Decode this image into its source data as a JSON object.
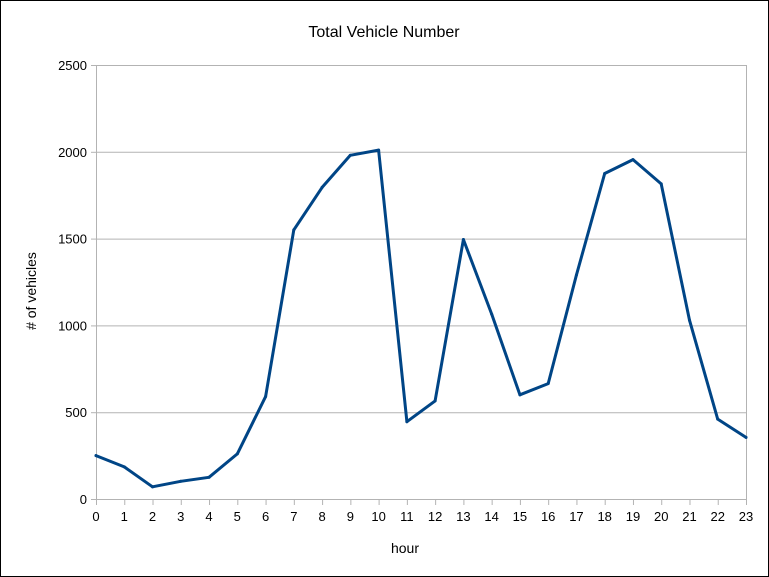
{
  "chart_data": {
    "type": "line",
    "title": "Total Vehicle Number",
    "xlabel": "hour",
    "ylabel": "# of vehicles",
    "categories": [
      "0",
      "1",
      "2",
      "3",
      "4",
      "5",
      "6",
      "7",
      "8",
      "9",
      "10",
      "11",
      "12",
      "13",
      "14",
      "15",
      "16",
      "17",
      "18",
      "19",
      "20",
      "21",
      "22",
      "23"
    ],
    "yticks": [
      "0",
      "500",
      "1000",
      "1500",
      "2000",
      "2500"
    ],
    "ylim": [
      0,
      2500
    ],
    "grid": true,
    "legend": "none",
    "series": [
      {
        "values": [
          250,
          185,
          70,
          102,
          125,
          260,
          590,
          1550,
          1795,
          1980,
          2010,
          445,
          565,
          1495,
          1065,
          600,
          665,
          1290,
          1875,
          1955,
          1815,
          1030,
          460,
          355
        ],
        "color": "#004586"
      }
    ]
  }
}
